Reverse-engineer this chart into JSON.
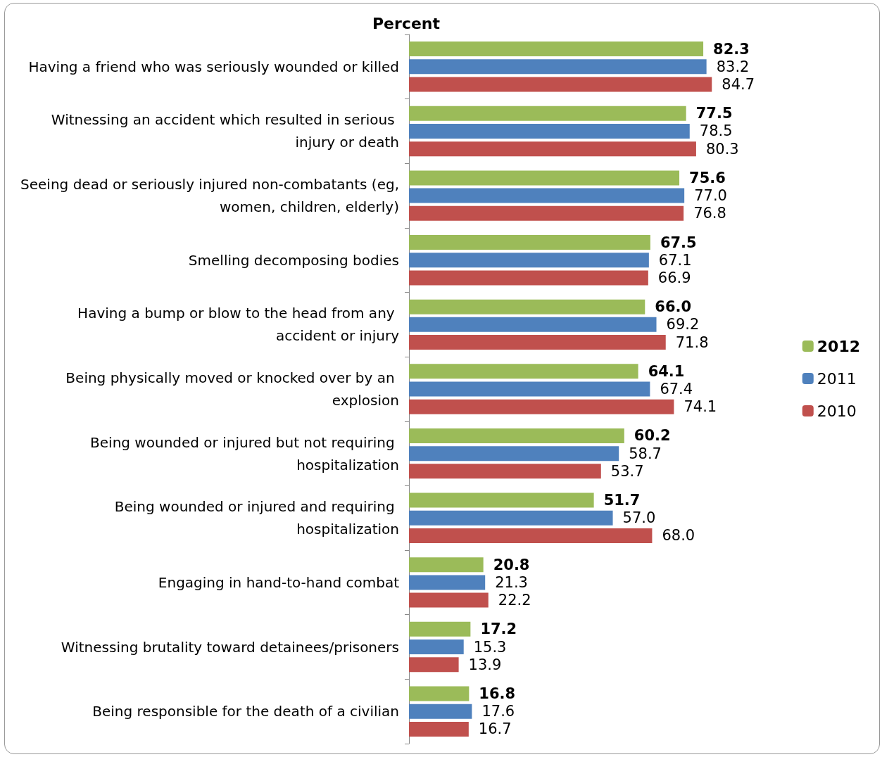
{
  "chart_data": {
    "type": "bar",
    "orientation": "horizontal",
    "title": "Percent",
    "categories": [
      "Having a friend who was seriously wounded or killed",
      "Witnessing an accident which resulted in serious injury or death",
      "Seeing dead or seriously injured non-combatants (eg, women, children, elderly)",
      "Smelling decomposing bodies",
      "Having a bump or blow to the head from any accident or injury",
      "Being physically moved or knocked over by an explosion",
      "Being wounded or injured but not requiring hospitalization",
      "Being wounded or injured and requiring hospitalization",
      "Engaging in hand-to-hand combat",
      "Witnessing brutality toward detainees/prisoners",
      "Being responsible for the death of a civilian"
    ],
    "series": [
      {
        "name": "2012",
        "color": "#9bbb59",
        "values": [
          82.3,
          77.5,
          75.6,
          67.5,
          66.0,
          64.1,
          60.2,
          51.7,
          20.8,
          17.2,
          16.8
        ],
        "value_labels": [
          "82.3",
          "77.5",
          "75.6",
          "67.5",
          "66.0",
          "64.1",
          "60.2",
          "51.7",
          "20.8",
          "17.2",
          "16.8"
        ]
      },
      {
        "name": "2011",
        "color": "#4f81bd",
        "values": [
          83.2,
          78.5,
          77.0,
          67.1,
          69.2,
          67.4,
          58.7,
          57.0,
          21.3,
          15.3,
          17.6
        ],
        "value_labels": [
          "83.2",
          "78.5",
          "77.0",
          "67.1",
          "69.2",
          "67.4",
          "58.7",
          "57.0",
          "21.3",
          "15.3",
          "17.6"
        ]
      },
      {
        "name": "2010",
        "color": "#c0504d",
        "values": [
          84.7,
          80.3,
          76.8,
          66.9,
          71.8,
          74.1,
          53.7,
          68.0,
          22.2,
          13.9,
          16.7
        ],
        "value_labels": [
          "84.7",
          "80.3",
          "76.8",
          "66.9",
          "71.8",
          "74.1",
          "53.7",
          "68.0",
          "22.2",
          "13.9",
          "16.7"
        ]
      }
    ],
    "legend": "right",
    "grid": false
  }
}
